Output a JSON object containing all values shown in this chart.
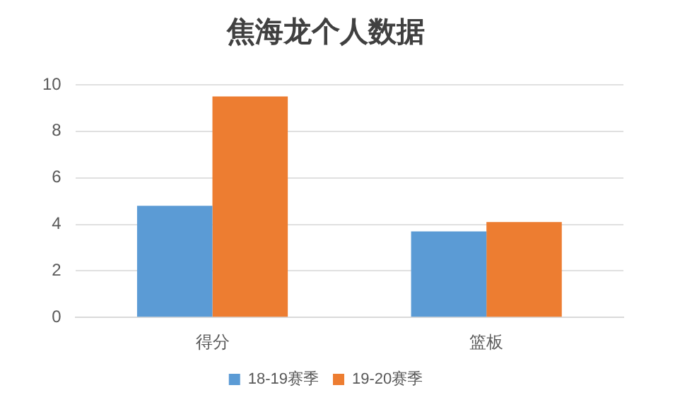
{
  "chart_data": {
    "type": "bar",
    "title": "焦海龙个人数据",
    "categories": [
      "得分",
      "篮板"
    ],
    "series": [
      {
        "name": "18-19赛季",
        "color": "#5b9bd5",
        "values": [
          4.8,
          3.7
        ]
      },
      {
        "name": "19-20赛季",
        "color": "#ed7d31",
        "values": [
          9.5,
          4.1
        ]
      }
    ],
    "ylim": [
      0,
      10
    ],
    "yticks": [
      0,
      2,
      4,
      6,
      8,
      10
    ],
    "grid": "y",
    "legend": "bottom"
  }
}
